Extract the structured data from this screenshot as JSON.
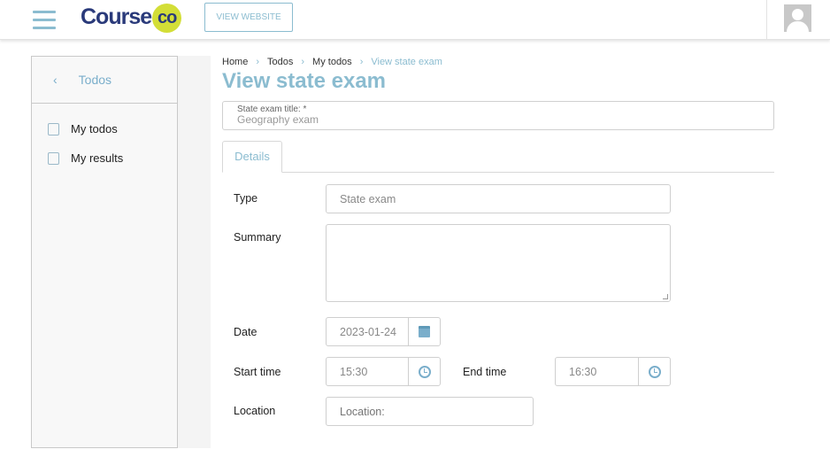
{
  "header": {
    "logo_text": "Course",
    "logo_badge": "co",
    "view_website": "VIEW WEBSITE"
  },
  "sidebar": {
    "back_label": "Todos",
    "items": [
      {
        "label": "My todos",
        "icon": "todos-icon"
      },
      {
        "label": "My results",
        "icon": "results-icon"
      }
    ]
  },
  "breadcrumb": [
    "Home",
    "Todos",
    "My todos",
    "View state exam"
  ],
  "page_title": "View state exam",
  "title_field": {
    "label": "State exam title: *",
    "value": "Geography exam"
  },
  "tabs": [
    {
      "label": "Details",
      "active": true
    }
  ],
  "form": {
    "type_label": "Type",
    "type_value": "State exam",
    "summary_label": "Summary",
    "summary_value": "",
    "date_label": "Date",
    "date_value": "2023-01-24",
    "start_label": "Start time",
    "start_value": "15:30",
    "end_label": "End time",
    "end_value": "16:30",
    "location_label": "Location",
    "location_placeholder": "Location:"
  },
  "colors": {
    "accent": "#8bbcd0",
    "logo_navy": "#2a3a7a",
    "logo_yellow": "#d3de37"
  }
}
